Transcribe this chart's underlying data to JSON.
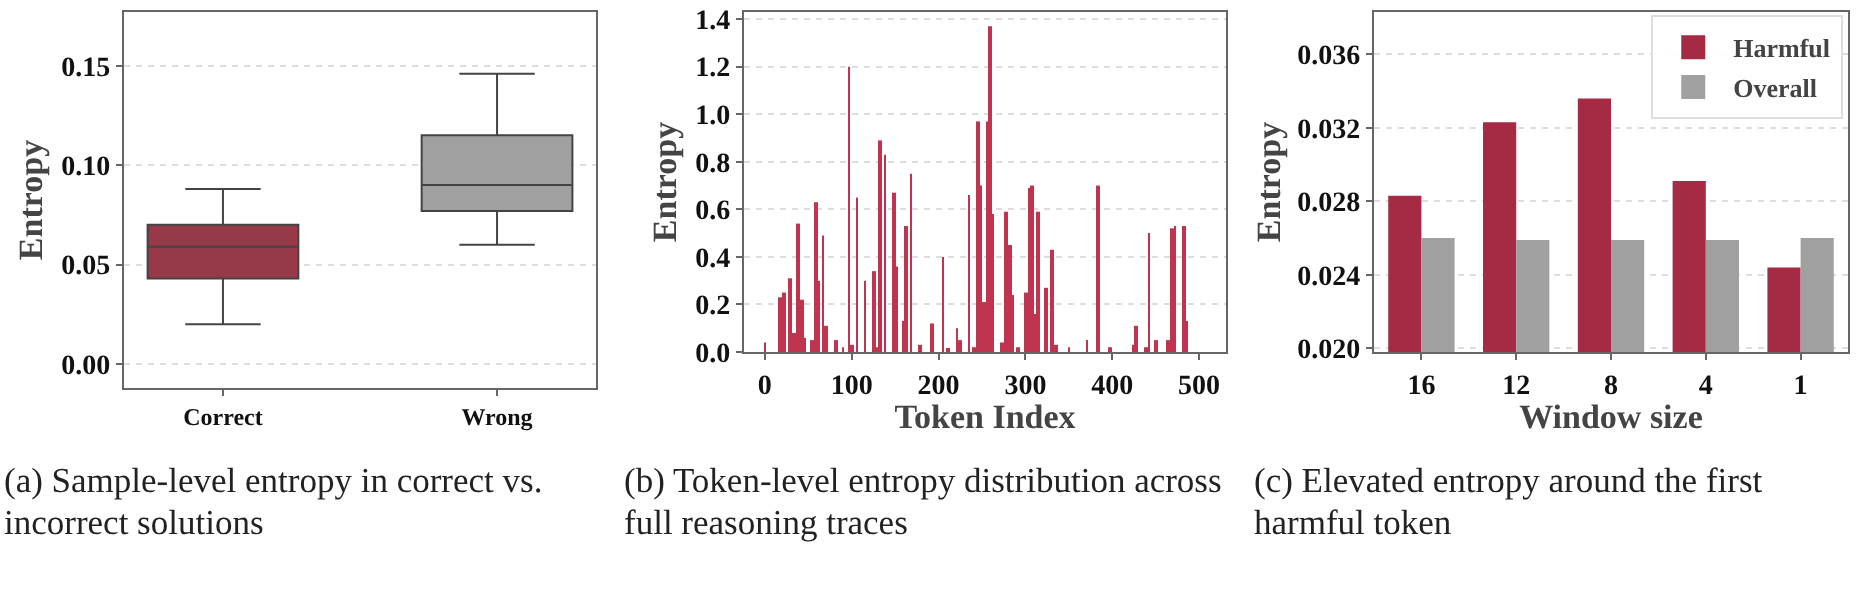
{
  "chart_data": [
    {
      "type": "box",
      "ylabel": "Entropy",
      "categories": [
        "Correct",
        "Wrong"
      ],
      "colors": [
        "#98394a",
        "#a0a0a0"
      ],
      "boxes": [
        {
          "low": 0.02,
          "q1": 0.043,
          "median": 0.059,
          "q3": 0.07,
          "high": 0.088
        },
        {
          "low": 0.06,
          "q1": 0.077,
          "median": 0.09,
          "q3": 0.115,
          "high": 0.146
        }
      ],
      "ylim": [
        -0.012,
        0.177
      ],
      "yticks": [
        {
          "value": 0,
          "label": "0.00"
        },
        0.05,
        {
          "value": 0.1,
          "label": "0.10"
        },
        0.15
      ],
      "grid": "y",
      "annotations": [
        "(a) Sample-level entropy in correct vs. incorrect solutions"
      ]
    },
    {
      "type": "bar",
      "xlabel": "Token Index",
      "ylabel": "Entropy",
      "color": "#c0344f",
      "x": [
        0,
        17,
        22,
        29,
        33,
        38,
        42,
        46,
        54,
        59,
        62,
        67,
        71,
        82,
        90,
        97,
        101,
        106,
        115,
        125,
        130,
        132,
        138,
        149,
        152,
        159,
        163,
        168,
        179,
        193,
        205,
        211,
        221,
        225,
        235,
        241,
        245,
        249,
        252,
        256,
        259,
        263,
        273,
        278,
        282,
        285,
        292,
        301,
        304,
        307,
        311,
        315,
        324,
        331,
        335,
        350,
        371,
        383,
        398,
        424,
        428,
        439,
        442,
        451,
        464,
        469,
        472,
        483,
        486
      ],
      "values": [
        0.04,
        0.23,
        0.25,
        0.31,
        0.08,
        0.54,
        0.22,
        0.06,
        0.05,
        0.63,
        0.3,
        0.49,
        0.11,
        0.05,
        0.02,
        1.2,
        0.03,
        0.65,
        0.3,
        0.34,
        0.02,
        0.89,
        0.83,
        0.67,
        0.36,
        0.13,
        0.53,
        0.75,
        0.03,
        0.12,
        0.4,
        0.01,
        0.1,
        0.05,
        0.66,
        0.02,
        0.97,
        0.7,
        0.21,
        0.97,
        1.37,
        0.58,
        0.04,
        0.59,
        0.45,
        0.24,
        0.02,
        0.25,
        0.69,
        0.7,
        0.16,
        0.59,
        0.27,
        0.43,
        0.03,
        0.02,
        0.05,
        0.7,
        0.02,
        0.03,
        0.11,
        0.02,
        0.5,
        0.05,
        0.05,
        0.52,
        0.53,
        0.53,
        0.13
      ],
      "xlim": [
        -24,
        531
      ],
      "xticks": [
        0,
        100,
        200,
        300,
        400,
        500
      ],
      "ylim": [
        0,
        1.43
      ],
      "yticks": [
        {
          "value": 0,
          "label": "0.0"
        },
        0.2,
        0.4,
        0.6,
        0.8,
        {
          "value": 1,
          "label": "1.0"
        },
        1.2,
        1.4
      ],
      "grid": "y",
      "annotations": [
        "(b) Token-level entropy distribution across full reasoning traces"
      ]
    },
    {
      "type": "bar",
      "xlabel": "Window size",
      "ylabel": "Entropy",
      "categories": [
        "16",
        "12",
        "8",
        "4",
        "1"
      ],
      "series": [
        {
          "name": "Harmful",
          "color": "#a52a43",
          "values": [
            0.0283,
            0.0323,
            0.0336,
            0.0291,
            0.0244
          ]
        },
        {
          "name": "Overall",
          "color": "#a0a0a0",
          "values": [
            0.026,
            0.0259,
            0.0259,
            0.0259,
            0.026
          ]
        }
      ],
      "ylim": [
        0.0198,
        0.0383
      ],
      "yticks": [
        {
          "value": 0.02,
          "label": "0.020"
        },
        0.024,
        0.028,
        0.032,
        0.036
      ],
      "grid": "y",
      "legend": "top right",
      "annotations": [
        "(c) Elevated entropy around the first harmful token"
      ]
    }
  ]
}
